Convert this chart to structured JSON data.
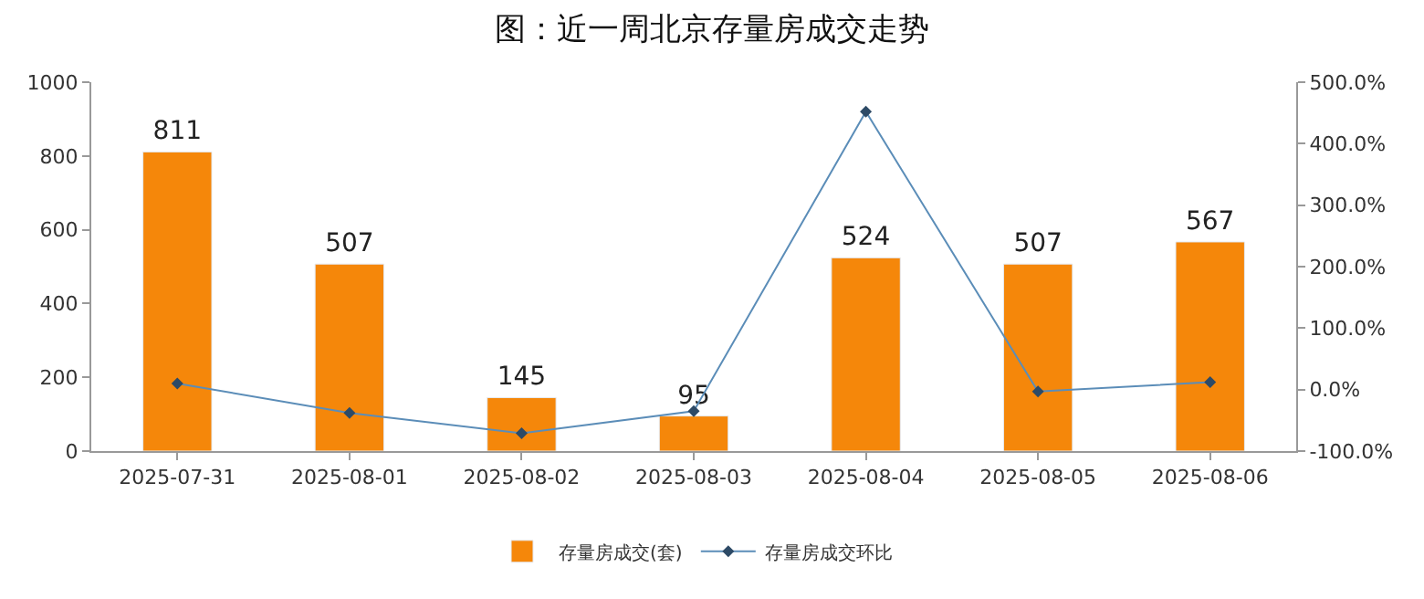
{
  "chart_data": {
    "type": "bar",
    "title": "图：近一周北京存量房成交走势",
    "categories": [
      "2025-07-31",
      "2025-08-01",
      "2025-08-02",
      "2025-08-03",
      "2025-08-04",
      "2025-08-05",
      "2025-08-06"
    ],
    "series": [
      {
        "name": "存量房成交(套)",
        "color": "#f5870a",
        "values": [
          811,
          507,
          145,
          95,
          524,
          507,
          567
        ],
        "value_labels": [
          "811",
          "507",
          "145",
          "95",
          "524",
          "507",
          "567"
        ]
      },
      {
        "name": "存量房成交环比",
        "type": "line",
        "axis": "y2",
        "color": "#5b8db8",
        "marker": "diamond",
        "values": [
          10,
          -38,
          -71,
          -35,
          452,
          -3,
          12
        ]
      }
    ],
    "ylim": [
      0,
      1000
    ],
    "yticks": [
      0,
      200,
      400,
      600,
      800,
      1000
    ],
    "y2lim": [
      -100,
      500
    ],
    "y2ticks": [
      {
        "value": -100,
        "label": "-100.0%"
      },
      {
        "value": 0,
        "label": "0.0%"
      },
      {
        "value": 100,
        "label": "100.0%"
      },
      {
        "value": 200,
        "label": "200.0%"
      },
      {
        "value": 300,
        "label": "300.0%"
      },
      {
        "value": 400,
        "label": "400.0%"
      },
      {
        "value": 500,
        "label": "500.0%"
      }
    ],
    "grid": false,
    "legend": "bottom"
  }
}
